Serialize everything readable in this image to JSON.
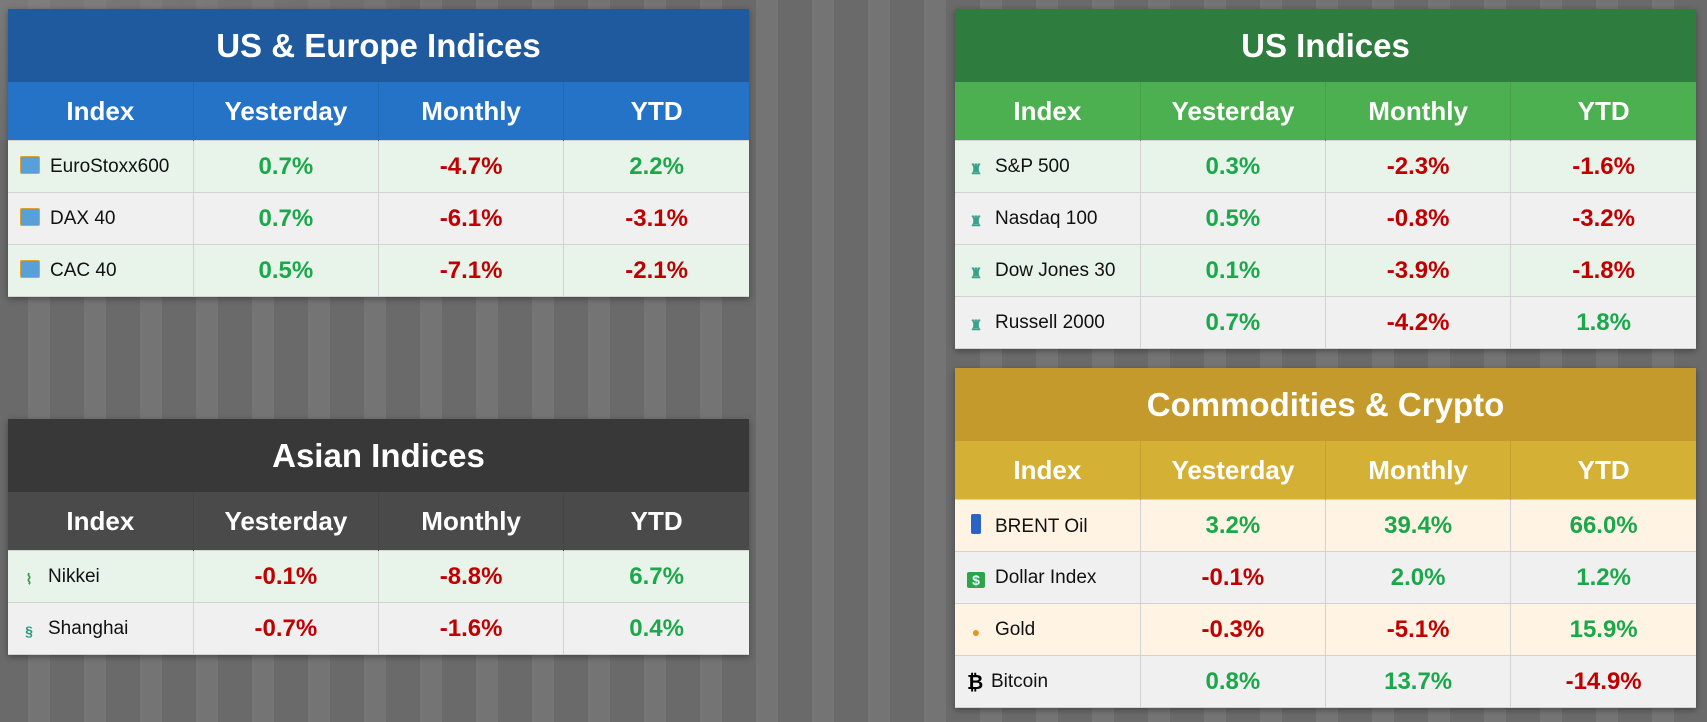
{
  "colors": {
    "positive": "#1aa84b",
    "negative": "#c00000"
  },
  "panels": [
    {
      "id": "us-europe",
      "title": "US & Europe Indices",
      "title_bg": "#1f5a9e",
      "header_bg": "#2473c6",
      "row_bg": [
        "#e8f4ea",
        "#f0f0f0"
      ],
      "columns": [
        "Index",
        "Yesterday",
        "Monthly",
        "YTD"
      ],
      "rows": [
        {
          "icon": "europe-map-icon",
          "name": "EuroStoxx600",
          "values": [
            "0.7%",
            "-4.7%",
            "2.2%"
          ]
        },
        {
          "icon": "europe-map-icon",
          "name": "DAX 40",
          "values": [
            "0.7%",
            "-6.1%",
            "-3.1%"
          ]
        },
        {
          "icon": "europe-map-icon",
          "name": "CAC 40",
          "values": [
            "0.5%",
            "-7.1%",
            "-2.1%"
          ]
        }
      ]
    },
    {
      "id": "asian",
      "title": "Asian Indices",
      "title_bg": "#383838",
      "header_bg": "#4a4a4a",
      "row_bg": [
        "#e8f4ea",
        "#f0f0f0"
      ],
      "columns": [
        "Index",
        "Yesterday",
        "Monthly",
        "YTD"
      ],
      "rows": [
        {
          "icon": "japan-map-icon",
          "name": "Nikkei",
          "values": [
            "-0.1%",
            "-8.8%",
            "6.7%"
          ]
        },
        {
          "icon": "dragon-icon",
          "name": "Shanghai",
          "values": [
            "-0.7%",
            "-1.6%",
            "0.4%"
          ]
        }
      ]
    },
    {
      "id": "us",
      "title": "US Indices",
      "title_bg": "#2e7d3e",
      "header_bg": "#4caf50",
      "row_bg": [
        "#e8f4ea",
        "#f0f0f0"
      ],
      "columns": [
        "Index",
        "Yesterday",
        "Monthly",
        "YTD"
      ],
      "rows": [
        {
          "icon": "statue-of-liberty-icon",
          "name": "S&P 500",
          "values": [
            "0.3%",
            "-2.3%",
            "-1.6%"
          ]
        },
        {
          "icon": "statue-of-liberty-icon",
          "name": "Nasdaq 100",
          "values": [
            "0.5%",
            "-0.8%",
            "-3.2%"
          ]
        },
        {
          "icon": "statue-of-liberty-icon",
          "name": "Dow Jones 30",
          "values": [
            "0.1%",
            "-3.9%",
            "-1.8%"
          ]
        },
        {
          "icon": "statue-of-liberty-icon",
          "name": "Russell 2000",
          "values": [
            "0.7%",
            "-4.2%",
            "1.8%"
          ]
        }
      ]
    },
    {
      "id": "commodities",
      "title": "Commodities & Crypto",
      "title_bg": "#c49a2c",
      "header_bg": "#d4b035",
      "row_bg": [
        "#fff3e3",
        "#f0f0f0"
      ],
      "columns": [
        "Index",
        "Yesterday",
        "Monthly",
        "YTD"
      ],
      "rows": [
        {
          "icon": "oil-drum-icon",
          "name": "BRENT Oil",
          "values": [
            "3.2%",
            "39.4%",
            "66.0%"
          ]
        },
        {
          "icon": "dollar-banknote-icon",
          "name": "Dollar Index",
          "values": [
            "-0.1%",
            "2.0%",
            "1.2%"
          ]
        },
        {
          "icon": "gold-medal-icon",
          "name": "Gold",
          "values": [
            "-0.3%",
            "-5.1%",
            "15.9%"
          ]
        },
        {
          "icon": "bitcoin-icon",
          "name": "Bitcoin",
          "values": [
            "0.8%",
            "13.7%",
            "-14.9%"
          ]
        }
      ]
    }
  ]
}
